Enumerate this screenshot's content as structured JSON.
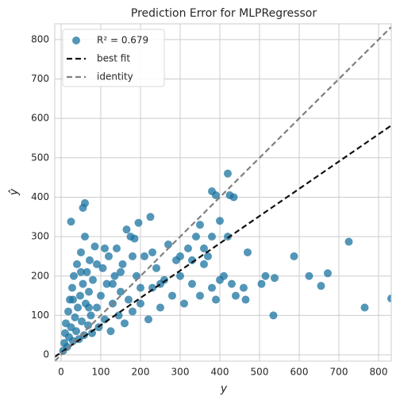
{
  "chart_data": {
    "type": "scatter",
    "title": "Prediction Error for MLPRegressor",
    "xlabel": "y",
    "ylabel": "ŷ",
    "xlim": [
      -16,
      832
    ],
    "ylim": [
      -16,
      840
    ],
    "xticks": [
      0,
      100,
      200,
      300,
      400,
      500,
      600,
      700,
      800
    ],
    "yticks": [
      0,
      100,
      200,
      300,
      400,
      500,
      600,
      700,
      800
    ],
    "grid": true,
    "legend": "upper left",
    "series": [
      {
        "name": "R² = 0.679",
        "mode": "markers",
        "color": "#1a73a0",
        "x": [
          5,
          8,
          10,
          12,
          15,
          18,
          20,
          22,
          25,
          28,
          30,
          32,
          35,
          38,
          40,
          42,
          45,
          48,
          50,
          52,
          55,
          58,
          60,
          62,
          65,
          68,
          70,
          72,
          75,
          78,
          80,
          85,
          90,
          95,
          100,
          105,
          110,
          115,
          120,
          125,
          130,
          135,
          140,
          145,
          150,
          155,
          160,
          170,
          175,
          180,
          190,
          200,
          210,
          220,
          230,
          240,
          250,
          260,
          270,
          280,
          290,
          300,
          310,
          320,
          330,
          340,
          350,
          360,
          370,
          380,
          390,
          400,
          410,
          420,
          430,
          440,
          460,
          30,
          50,
          70,
          90,
          110,
          130,
          150,
          180,
          200,
          230,
          250,
          300,
          330,
          350,
          360,
          380,
          400,
          725,
          765,
          832,
          672,
          655,
          625,
          587,
          538,
          535,
          505,
          515,
          470,
          465,
          420,
          425,
          435,
          380,
          390,
          60,
          55,
          25,
          225,
          195,
          165,
          185
        ],
        "y": [
          10,
          30,
          55,
          80,
          20,
          110,
          45,
          140,
          70,
          170,
          35,
          200,
          95,
          60,
          230,
          120,
          40,
          150,
          260,
          85,
          180,
          50,
          300,
          130,
          210,
          75,
          160,
          240,
          100,
          55,
          190,
          275,
          120,
          70,
          150,
          220,
          90,
          180,
          250,
          60,
          130,
          200,
          270,
          100,
          160,
          230,
          80,
          140,
          300,
          110,
          200,
          130,
          250,
          90,
          170,
          220,
          120,
          190,
          280,
          150,
          240,
          200,
          130,
          270,
          180,
          300,
          150,
          230,
          250,
          170,
          140,
          190,
          200,
          300,
          180,
          150,
          170,
          140,
          210,
          120,
          230,
          270,
          180,
          210,
          250,
          170,
          260,
          180,
          250,
          240,
          330,
          270,
          300,
          340,
          287,
          120,
          143,
          207,
          175,
          200,
          250,
          195,
          100,
          180,
          200,
          260,
          140,
          460,
          405,
          400,
          415,
          405,
          385,
          373,
          338,
          350,
          335,
          318,
          295
        ]
      },
      {
        "name": "best fit",
        "mode": "lines",
        "dash": "7,4",
        "color": "#111111",
        "x": [
          -16,
          832
        ],
        "y": [
          -5,
          582
        ]
      },
      {
        "name": "identity",
        "mode": "lines",
        "dash": "7,4",
        "color": "#808080",
        "x": [
          -16,
          832
        ],
        "y": [
          -16,
          832
        ]
      }
    ]
  }
}
